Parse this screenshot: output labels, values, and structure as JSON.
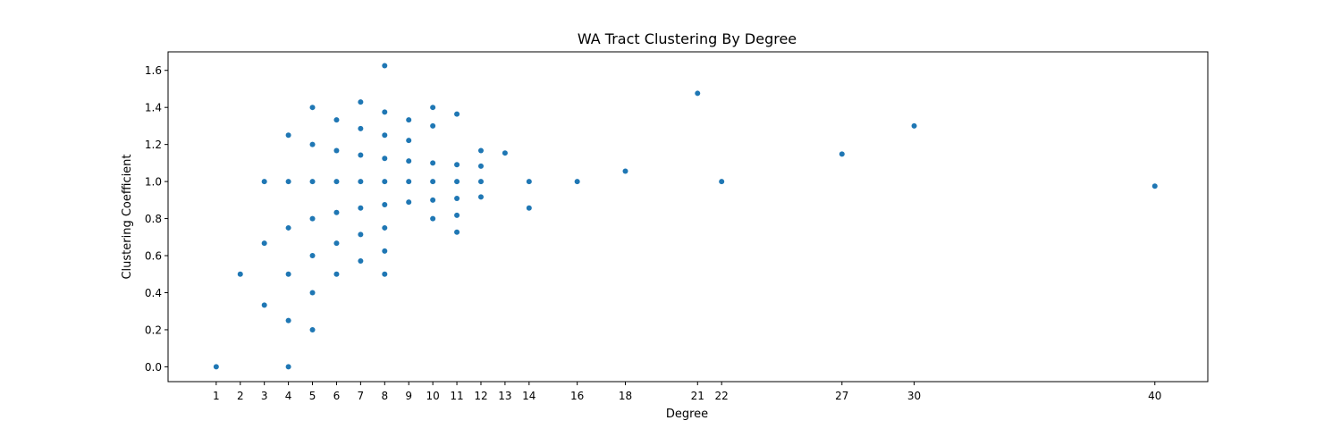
{
  "chart_data": {
    "type": "scatter",
    "title": "WA Tract Clustering By Degree",
    "xlabel": "Degree",
    "ylabel": "Clustering Coefficient",
    "xlim": [
      -1,
      42.2
    ],
    "ylim": [
      -0.08,
      1.7
    ],
    "x_ticks": [
      1,
      2,
      3,
      4,
      5,
      6,
      7,
      8,
      9,
      10,
      11,
      12,
      13,
      14,
      16,
      18,
      21,
      22,
      27,
      30,
      40
    ],
    "y_ticks": [
      0.0,
      0.2,
      0.4,
      0.6,
      0.8,
      1.0,
      1.2,
      1.4,
      1.6
    ],
    "y_tick_labels": [
      "0.0",
      "0.2",
      "0.4",
      "0.6",
      "0.8",
      "1.0",
      "1.2",
      "1.4",
      "1.6"
    ],
    "grid": false,
    "legend": "none",
    "marker_color": "#1f77b4",
    "series": [
      {
        "points": [
          [
            1,
            0.0
          ],
          [
            2,
            0.5
          ],
          [
            3,
            1.0
          ],
          [
            3,
            0.667
          ],
          [
            3,
            0.333
          ],
          [
            4,
            1.25
          ],
          [
            4,
            1.0
          ],
          [
            4,
            0.75
          ],
          [
            4,
            0.5
          ],
          [
            4,
            0.25
          ],
          [
            4,
            0.0
          ],
          [
            5,
            1.4
          ],
          [
            5,
            1.2
          ],
          [
            5,
            1.0
          ],
          [
            5,
            0.8
          ],
          [
            5,
            0.6
          ],
          [
            5,
            0.4
          ],
          [
            5,
            0.2
          ],
          [
            6,
            1.333
          ],
          [
            6,
            1.167
          ],
          [
            6,
            1.0
          ],
          [
            6,
            0.833
          ],
          [
            6,
            0.667
          ],
          [
            6,
            0.5
          ],
          [
            7,
            1.429
          ],
          [
            7,
            1.286
          ],
          [
            7,
            1.143
          ],
          [
            7,
            1.0
          ],
          [
            7,
            0.857
          ],
          [
            7,
            0.714
          ],
          [
            7,
            0.571
          ],
          [
            8,
            1.625
          ],
          [
            8,
            1.375
          ],
          [
            8,
            1.25
          ],
          [
            8,
            1.125
          ],
          [
            8,
            1.0
          ],
          [
            8,
            0.875
          ],
          [
            8,
            0.75
          ],
          [
            8,
            0.625
          ],
          [
            8,
            0.5
          ],
          [
            9,
            1.333
          ],
          [
            9,
            1.222
          ],
          [
            9,
            1.111
          ],
          [
            9,
            1.0
          ],
          [
            9,
            0.889
          ],
          [
            10,
            1.4
          ],
          [
            10,
            1.3
          ],
          [
            10,
            1.1
          ],
          [
            10,
            1.0
          ],
          [
            10,
            0.9
          ],
          [
            10,
            0.8
          ],
          [
            11,
            1.364
          ],
          [
            11,
            1.091
          ],
          [
            11,
            1.0
          ],
          [
            11,
            0.909
          ],
          [
            11,
            0.818
          ],
          [
            11,
            0.727
          ],
          [
            12,
            1.167
          ],
          [
            12,
            1.083
          ],
          [
            12,
            1.0
          ],
          [
            12,
            0.917
          ],
          [
            13,
            1.154
          ],
          [
            14,
            1.0
          ],
          [
            14,
            0.857
          ],
          [
            16,
            1.0
          ],
          [
            18,
            1.056
          ],
          [
            21,
            1.476
          ],
          [
            22,
            1.0
          ],
          [
            27,
            1.148
          ],
          [
            30,
            1.3
          ],
          [
            40,
            0.975
          ]
        ]
      }
    ]
  }
}
